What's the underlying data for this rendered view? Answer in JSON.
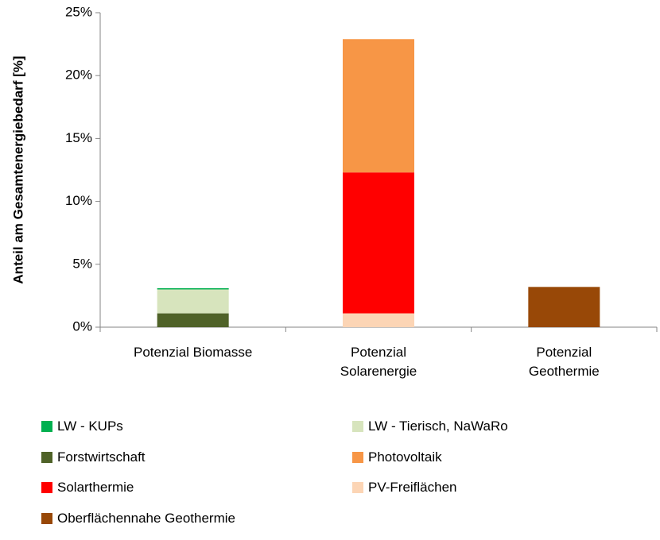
{
  "chart_data": {
    "type": "stacked_bar",
    "y_label": "Anteil am Gesamtenergiebedarf [%]",
    "categories": [
      "Potenzial Biomasse",
      "Potenzial Solarenergie",
      "Potenzial Geothermie"
    ],
    "series": [
      {
        "name": "LW - KUPs",
        "color": "#00b050",
        "values": [
          0.1,
          null,
          null
        ]
      },
      {
        "name": "LW - Tierisch, NaWaRo",
        "color": "#d7e4bd",
        "values": [
          1.9,
          null,
          null
        ]
      },
      {
        "name": "Forstwirtschaft",
        "color": "#4f6228",
        "values": [
          1.1,
          null,
          null
        ]
      },
      {
        "name": "Photovoltaik",
        "color": "#f79646",
        "values": [
          null,
          10.6,
          null
        ]
      },
      {
        "name": "Solarthermie",
        "color": "#ff0000",
        "values": [
          null,
          11.2,
          null
        ]
      },
      {
        "name": "PV-Freiflächen",
        "color": "#fcd5b5",
        "values": [
          null,
          1.1,
          null
        ]
      },
      {
        "name": "Oberflächennahe Geothermie",
        "color": "#984807",
        "values": [
          null,
          null,
          3.2
        ]
      }
    ],
    "ylim": [
      0,
      25
    ],
    "yticks": [
      {
        "value": 0,
        "label": "0%"
      },
      {
        "value": 5,
        "label": "5%"
      },
      {
        "value": 10,
        "label": "10%"
      },
      {
        "value": 15,
        "label": "15%"
      },
      {
        "value": 20,
        "label": "20%"
      },
      {
        "value": 25,
        "label": "25%"
      }
    ],
    "legend": "bottom"
  }
}
